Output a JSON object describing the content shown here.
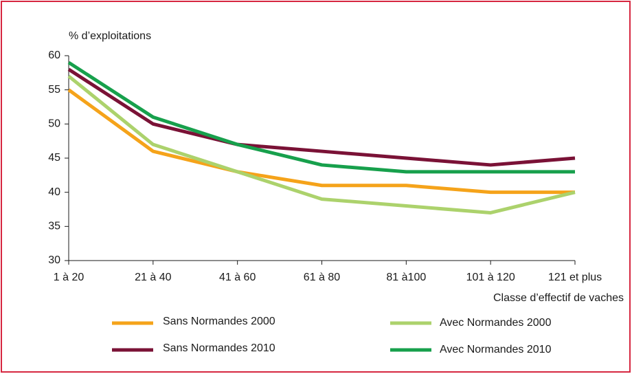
{
  "chart_data": {
    "type": "line",
    "y_label": "% d’exploitations",
    "x_label": "Classe d’effectif de vaches",
    "categories": [
      "1 à 20",
      "21 à 40",
      "41 à 60",
      "61 à 80",
      "81 à100",
      "101 à 120",
      "121 et plus"
    ],
    "series": [
      {
        "name": "Sans Normandes 2000",
        "color": "#f5a31a",
        "values": [
          55,
          46,
          43,
          41,
          41,
          40,
          40
        ]
      },
      {
        "name": "Avec Normandes 2000",
        "color": "#acd26c",
        "values": [
          57,
          47,
          43,
          39,
          38,
          37,
          40
        ]
      },
      {
        "name": "Sans Normandes 2010",
        "color": "#7a1236",
        "values": [
          58,
          50,
          47,
          46,
          45,
          44,
          45
        ]
      },
      {
        "name": "Avec Normandes 2010",
        "color": "#17a04c",
        "values": [
          59,
          51,
          47,
          44,
          43,
          43,
          43
        ]
      }
    ],
    "ylim": [
      30,
      60
    ],
    "yticks": [
      30,
      35,
      40,
      45,
      50,
      55,
      60
    ],
    "grid": false,
    "legend": "bottom"
  }
}
